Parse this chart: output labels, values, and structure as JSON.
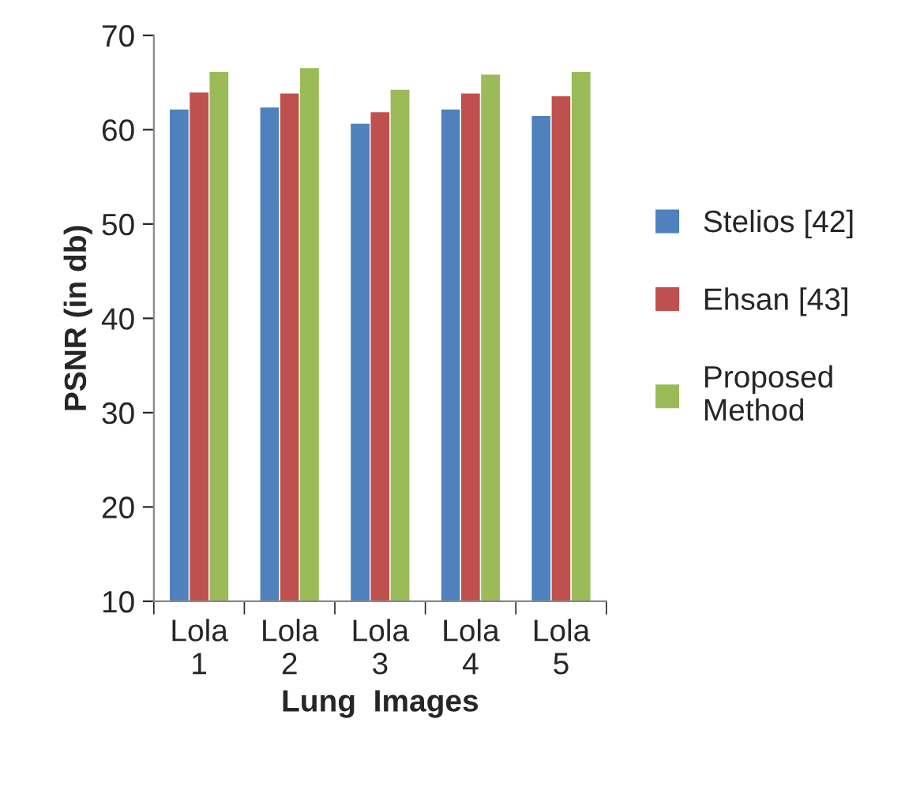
{
  "chart_data": {
    "type": "bar",
    "xlabel": "Lung  Images",
    "ylabel": "PSNR (in db)",
    "categories": [
      "Lola\n1",
      "Lola\n2",
      "Lola\n3",
      "Lola\n4",
      "Lola\n5"
    ],
    "series": [
      {
        "name": "Stelios [42]",
        "color": "#4f81bd",
        "values": [
          62.2,
          62.4,
          60.7,
          62.2,
          61.5
        ]
      },
      {
        "name": "Ehsan [43]",
        "color": "#c0504d",
        "values": [
          64.0,
          63.9,
          61.9,
          63.9,
          63.6
        ]
      },
      {
        "name": "Proposed\nMethod",
        "color": "#9bbb59",
        "values": [
          66.2,
          66.6,
          64.3,
          65.9,
          66.2
        ]
      }
    ],
    "ylim": [
      10,
      70
    ],
    "yticks": [
      10,
      20,
      30,
      40,
      50,
      60,
      70
    ],
    "grid": false,
    "legend": "right"
  }
}
